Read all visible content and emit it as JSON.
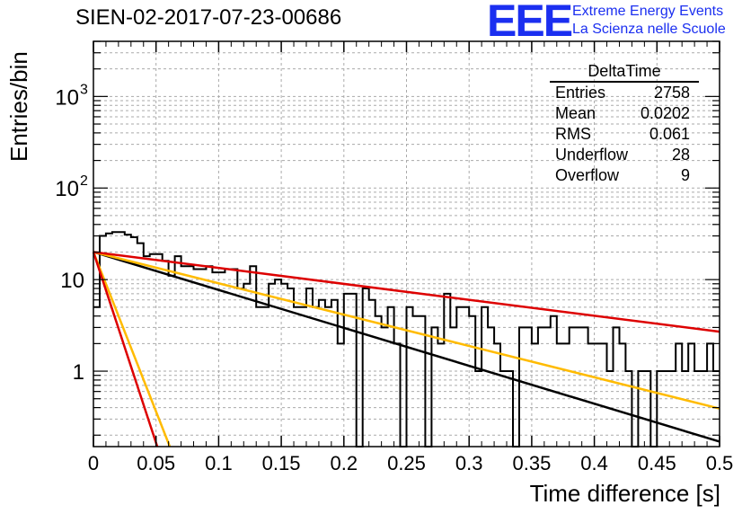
{
  "chart_data": {
    "type": "histogram",
    "title": "SIEN-02-2017-07-23-00686",
    "xlabel": "Time difference [s]",
    "ylabel": "Entries/bin",
    "xlim": [
      0,
      0.5
    ],
    "ylim": [
      0.15,
      4000
    ],
    "yscale": "log",
    "grid": true,
    "x_ticks": [
      "0",
      "0.05",
      "0.1",
      "0.15",
      "0.2",
      "0.25",
      "0.3",
      "0.35",
      "0.4",
      "0.45",
      "0.5"
    ],
    "y_ticks": [
      {
        "value": 1,
        "label": "1"
      },
      {
        "value": 10,
        "label": "10"
      },
      {
        "value": 100,
        "label": "10",
        "exp": "2"
      },
      {
        "value": 1000,
        "label": "10",
        "exp": "3"
      }
    ],
    "bin_width": 0.005,
    "histogram_values": [
      5,
      30,
      32,
      33,
      33,
      31,
      29,
      25,
      18,
      19,
      19,
      16,
      11,
      18,
      14,
      14,
      13,
      13,
      14,
      12,
      12,
      13,
      13,
      8,
      9,
      14,
      5,
      5,
      9,
      10,
      9,
      8,
      5,
      5,
      8,
      5,
      6,
      5,
      6,
      2,
      7,
      7,
      0,
      8,
      6,
      4,
      3,
      5,
      2,
      0,
      5,
      4,
      4,
      0,
      3,
      2,
      7,
      3,
      5,
      5,
      4,
      1,
      5,
      3,
      2,
      1,
      1,
      0,
      3,
      3,
      2,
      3,
      3,
      4,
      2,
      2,
      3,
      3,
      3,
      2,
      2,
      2,
      1,
      3,
      2,
      1,
      0,
      1,
      1,
      0,
      1,
      1,
      1,
      2,
      1,
      2,
      1,
      1,
      2,
      1
    ],
    "fits": [
      {
        "color": "#000000",
        "y0": 20,
        "y1": 0.17,
        "x_end": 0.5
      },
      {
        "color": "#ffbb00",
        "y0": 20,
        "y1": 0.39,
        "x_end": 0.5
      },
      {
        "color": "#dd0000",
        "y0": 20,
        "y1": 2.7,
        "x_end": 0.5
      },
      {
        "color": "#ffbb00",
        "y0": 20,
        "y1": 0.15,
        "x_end": 0.061
      },
      {
        "color": "#dd0000",
        "y0": 20,
        "y1": 0.15,
        "x_end": 0.051
      }
    ],
    "stats_box": {
      "title": "DeltaTime",
      "rows": [
        {
          "key": "Entries",
          "value": "2758"
        },
        {
          "key": "Mean",
          "value": "0.0202"
        },
        {
          "key": "RMS",
          "value": "0.061"
        },
        {
          "key": "Underflow",
          "value": "28"
        },
        {
          "key": "Overflow",
          "value": "9"
        }
      ]
    }
  },
  "logo": {
    "text": "EEE",
    "line1": "Extreme Energy Events",
    "line2": "La Scienza nelle Scuole",
    "color": "#1b2ff0"
  }
}
